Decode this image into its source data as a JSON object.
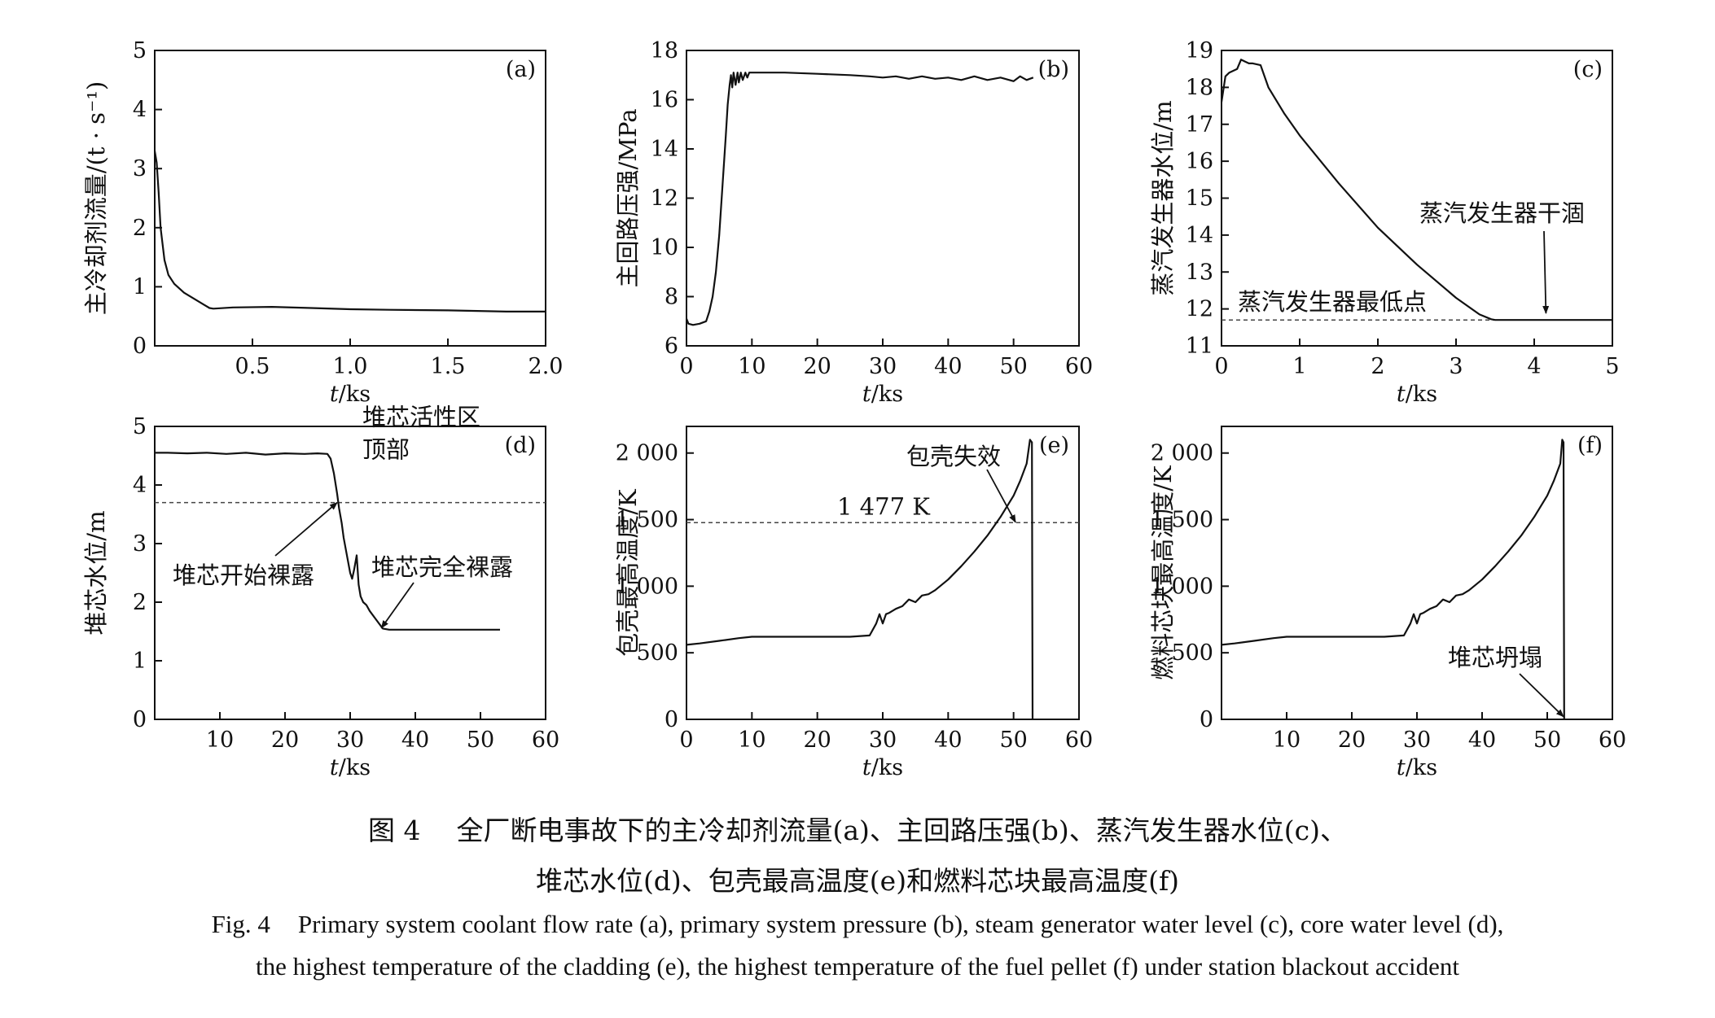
{
  "caption": {
    "zh_fig_no": "图 4",
    "zh_line1": "全厂断电事故下的主冷却剂流量(a)、主回路压强(b)、蒸汽发生器水位(c)、",
    "zh_line2": "堆芯水位(d)、包壳最高温度(e)和燃料芯块最高温度(f)",
    "en_fig_no": "Fig. 4",
    "en_line1": "Primary system coolant flow rate (a), primary system pressure (b), steam generator water level (c), core water level (d),",
    "en_line2": "the highest temperature of the cladding (e), the highest temperature of the fuel pellet (f) under station blackout accident"
  },
  "colors": {
    "line": "#111111",
    "axis": "#111111",
    "ref_line": "#444444"
  },
  "chart_data": [
    {
      "panel": "(a)",
      "type": "line",
      "ylabel": "主冷却剂流量/(t · s⁻¹)",
      "xlabel": "t/ks",
      "xlim": [
        0,
        2.0
      ],
      "ylim": [
        0,
        5
      ],
      "xticks": [
        0.5,
        1.0,
        1.5,
        2.0
      ],
      "xtick_labels": [
        "0.5",
        "1.0",
        "1.5",
        "2.0"
      ],
      "yticks": [
        0,
        1,
        2,
        3,
        4,
        5
      ],
      "ytick_labels": [
        "0",
        "1",
        "2",
        "3",
        "4",
        "5"
      ],
      "series": [
        {
          "x": [
            0,
            0.01,
            0.02,
            0.03,
            0.05,
            0.07,
            0.1,
            0.15,
            0.2,
            0.25,
            0.28,
            0.3,
            0.4,
            0.6,
            0.8,
            1.0,
            1.2,
            1.5,
            1.8,
            2.0
          ],
          "y": [
            3.3,
            3.1,
            2.6,
            2.0,
            1.45,
            1.2,
            1.05,
            0.9,
            0.8,
            0.7,
            0.64,
            0.63,
            0.65,
            0.66,
            0.64,
            0.62,
            0.61,
            0.6,
            0.58,
            0.58
          ]
        }
      ],
      "ref_lines": [],
      "annotations": []
    },
    {
      "panel": "(b)",
      "type": "line",
      "ylabel": "主回路压强/MPa",
      "xlabel": "t/ks",
      "xlim": [
        0,
        60
      ],
      "ylim": [
        6,
        18
      ],
      "xticks": [
        0,
        10,
        20,
        30,
        40,
        50,
        60
      ],
      "xtick_labels": [
        "0",
        "10",
        "20",
        "30",
        "40",
        "50",
        "60"
      ],
      "yticks": [
        6,
        8,
        10,
        12,
        14,
        16,
        18
      ],
      "ytick_labels": [
        "6",
        "8",
        "10",
        "12",
        "14",
        "16",
        "18"
      ],
      "series": [
        {
          "x": [
            0,
            0.3,
            1,
            2,
            3,
            3.5,
            4,
            4.5,
            5,
            5.5,
            6,
            6.3,
            6.6,
            6.8,
            7,
            7.2,
            7.5,
            7.8,
            8,
            8.3,
            8.6,
            9,
            9.3,
            9.6,
            10,
            12,
            15,
            20,
            25,
            28,
            30,
            32,
            34,
            36,
            38,
            40,
            42,
            44,
            46,
            48,
            50,
            51,
            52,
            53
          ],
          "y": [
            7.1,
            6.9,
            6.85,
            6.9,
            7.0,
            7.4,
            8.0,
            9.0,
            10.5,
            12.5,
            14.5,
            15.8,
            16.6,
            17.0,
            16.5,
            17.1,
            16.6,
            17.1,
            16.7,
            17.1,
            16.8,
            17.1,
            16.9,
            17.1,
            17.1,
            17.1,
            17.1,
            17.05,
            17.0,
            16.95,
            16.9,
            16.95,
            16.85,
            16.95,
            16.85,
            16.9,
            16.8,
            16.95,
            16.8,
            16.9,
            16.75,
            16.95,
            16.8,
            16.9
          ]
        }
      ],
      "ref_lines": [],
      "annotations": []
    },
    {
      "panel": "(c)",
      "type": "line",
      "ylabel": "蒸汽发生器水位/m",
      "xlabel": "t/ks",
      "xlim": [
        0,
        5
      ],
      "ylim": [
        11,
        19
      ],
      "xticks": [
        0,
        1,
        2,
        3,
        4,
        5
      ],
      "xtick_labels": [
        "0",
        "1",
        "2",
        "3",
        "4",
        "5"
      ],
      "yticks": [
        11,
        12,
        13,
        14,
        15,
        16,
        17,
        18,
        19
      ],
      "ytick_labels": [
        "11",
        "12",
        "13",
        "14",
        "15",
        "16",
        "17",
        "18",
        "19"
      ],
      "series": [
        {
          "x": [
            0,
            0.05,
            0.1,
            0.15,
            0.2,
            0.25,
            0.3,
            0.35,
            0.4,
            0.5,
            0.6,
            0.8,
            1.0,
            1.5,
            2.0,
            2.5,
            3.0,
            3.3,
            3.45,
            3.5,
            4.0,
            4.5,
            5.0
          ],
          "y": [
            17.6,
            18.3,
            18.4,
            18.45,
            18.5,
            18.75,
            18.7,
            18.65,
            18.65,
            18.6,
            18.0,
            17.3,
            16.7,
            15.4,
            14.2,
            13.2,
            12.3,
            11.85,
            11.72,
            11.7,
            11.7,
            11.7,
            11.7
          ]
        }
      ],
      "ref_lines": [
        {
          "y": 11.7,
          "label": "蒸汽发生器最低点"
        }
      ],
      "annotations": [
        {
          "text": "蒸汽发生器干涸",
          "x": 4.15,
          "y": 11.75
        }
      ]
    },
    {
      "panel": "(d)",
      "type": "line",
      "ylabel": "堆芯水位/m",
      "xlabel": "t/ks",
      "xlim": [
        0,
        60
      ],
      "ylim": [
        0,
        5
      ],
      "xticks": [
        10,
        20,
        30,
        40,
        50,
        60
      ],
      "xtick_labels": [
        "10",
        "20",
        "30",
        "40",
        "50",
        "60"
      ],
      "yticks": [
        0,
        1,
        2,
        3,
        4,
        5
      ],
      "ytick_labels": [
        "0",
        "1",
        "2",
        "3",
        "4",
        "5"
      ],
      "series": [
        {
          "x": [
            0,
            2,
            5,
            8,
            11,
            14,
            17,
            20,
            23,
            25,
            26.5,
            27,
            27.5,
            28,
            28.3,
            28.7,
            29,
            29.5,
            30,
            30.3,
            30.6,
            31,
            31.3,
            31.6,
            32,
            32.5,
            33,
            34,
            35,
            36,
            40,
            45,
            50,
            53
          ],
          "y": [
            4.55,
            4.55,
            4.54,
            4.55,
            4.53,
            4.55,
            4.52,
            4.54,
            4.53,
            4.54,
            4.53,
            4.45,
            4.2,
            3.85,
            3.6,
            3.35,
            3.1,
            2.8,
            2.5,
            2.4,
            2.55,
            2.8,
            2.3,
            2.1,
            2.0,
            1.95,
            1.85,
            1.7,
            1.55,
            1.53,
            1.53,
            1.53,
            1.53,
            1.53
          ]
        }
      ],
      "ref_lines": [
        {
          "y": 3.7,
          "label": "堆芯活性区\n顶部"
        }
      ],
      "annotations": [
        {
          "text": "堆芯开始裸露",
          "x": 28,
          "y": 3.7
        },
        {
          "text": "堆芯完全裸露",
          "x": 34.8,
          "y": 1.56
        }
      ]
    },
    {
      "panel": "(e)",
      "type": "line",
      "ylabel": "包壳最高温度/K",
      "xlabel": "t/ks",
      "xlim": [
        0,
        60
      ],
      "ylim": [
        0,
        2200
      ],
      "xticks": [
        0,
        10,
        20,
        30,
        40,
        50,
        60
      ],
      "xtick_labels": [
        "0",
        "10",
        "20",
        "30",
        "40",
        "50",
        "60"
      ],
      "yticks": [
        0,
        500,
        1000,
        1500,
        2000
      ],
      "ytick_labels": [
        "0",
        "500",
        "1 000",
        "1 500",
        "2 000"
      ],
      "series": [
        {
          "x": [
            0,
            2,
            5,
            8,
            10,
            15,
            20,
            25,
            28,
            29,
            29.5,
            30,
            30.5,
            31,
            32,
            33,
            34,
            35,
            36,
            37,
            38,
            40,
            42,
            44,
            46,
            48,
            50,
            51,
            52,
            52.5,
            52.8,
            52.85,
            52.9
          ],
          "y": [
            560,
            570,
            590,
            610,
            620,
            620,
            620,
            620,
            630,
            720,
            790,
            720,
            790,
            800,
            830,
            850,
            900,
            880,
            930,
            940,
            970,
            1050,
            1150,
            1260,
            1380,
            1520,
            1680,
            1790,
            1920,
            2100,
            2080,
            1000,
            0
          ]
        }
      ],
      "ref_lines": [
        {
          "y": 1477,
          "label": "1 477 K"
        }
      ],
      "annotations": [
        {
          "text": "包壳失效",
          "x": 50.3,
          "y": 1480
        }
      ]
    },
    {
      "panel": "(f)",
      "type": "line",
      "ylabel": "燃料芯块最高温度/K",
      "xlabel": "t/ks",
      "xlim": [
        0,
        60
      ],
      "ylim": [
        0,
        2200
      ],
      "xticks": [
        10,
        20,
        30,
        40,
        50,
        60
      ],
      "xtick_labels": [
        "10",
        "20",
        "30",
        "40",
        "50",
        "60"
      ],
      "yticks": [
        0,
        500,
        1000,
        1500,
        2000
      ],
      "ytick_labels": [
        "0",
        "500",
        "1 000",
        "1 500",
        "2 000"
      ],
      "series": [
        {
          "x": [
            0,
            2,
            5,
            8,
            10,
            15,
            20,
            25,
            28,
            29,
            29.5,
            30,
            30.5,
            31,
            32,
            33,
            34,
            35,
            36,
            37,
            38,
            40,
            42,
            44,
            46,
            48,
            50,
            51,
            52,
            52.3,
            52.5,
            52.55,
            52.6
          ],
          "y": [
            560,
            570,
            590,
            610,
            620,
            620,
            620,
            620,
            630,
            720,
            790,
            720,
            790,
            800,
            830,
            850,
            900,
            880,
            930,
            940,
            970,
            1050,
            1150,
            1260,
            1380,
            1520,
            1680,
            1790,
            1920,
            2100,
            2080,
            1000,
            0
          ]
        }
      ],
      "ref_lines": [],
      "annotations": [
        {
          "text": "堆芯坍塌",
          "x": 52.5,
          "y": 20
        }
      ]
    }
  ]
}
